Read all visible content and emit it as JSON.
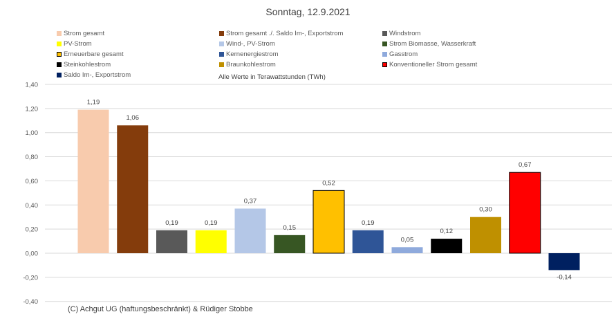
{
  "chart_data": {
    "type": "bar",
    "title": "Sonntag, 12.9.2021",
    "note": "Alle Werte in Terawattstunden (TWh)",
    "copyright": "(C) Achgut UG (haftungsbeschränkt) & Rüdiger Stobbe",
    "ylim": [
      -0.4,
      1.4
    ],
    "yticks": [
      "1,40",
      "1,20",
      "1,00",
      "0,80",
      "0,60",
      "0,40",
      "0,20",
      "0,00",
      "-0,20",
      "-0,40"
    ],
    "ytick_values": [
      1.4,
      1.2,
      1.0,
      0.8,
      0.6,
      0.4,
      0.2,
      0,
      -0.2,
      -0.4
    ],
    "grid": true,
    "legend_position": "top",
    "categories": [
      "Strom gesamt",
      "Strom gesamt ./. Saldo Im-, Exportstrom",
      "Windstrom",
      "PV-Strom",
      "Wind-, PV-Strom",
      "Strom Biomasse, Wasserkraft",
      "Erneuerbare gesamt",
      "Kernenergiestrom",
      "Gasstrom",
      "Steinkohlestrom",
      "Braunkohlestrom",
      "Konventioneller Strom gesamt",
      "Saldo Im-, Exportstrom"
    ],
    "values": [
      1.19,
      1.06,
      0.19,
      0.19,
      0.37,
      0.15,
      0.52,
      0.19,
      0.05,
      0.12,
      0.3,
      0.67,
      -0.14
    ],
    "labels": [
      "1,19",
      "1,06",
      "0,19",
      "0,19",
      "0,37",
      "0,15",
      "0,52",
      "0,19",
      "0,05",
      "0,12",
      "0,30",
      "0,67",
      "-0,14"
    ],
    "colors": [
      "#f8cbad",
      "#843c0c",
      "#595959",
      "#ffff00",
      "#b4c7e7",
      "#375623",
      "#ffc000",
      "#2f5597",
      "#8faadc",
      "#000000",
      "#bf9000",
      "#ff0000",
      "#002060"
    ],
    "outlined": [
      false,
      false,
      false,
      false,
      false,
      false,
      true,
      false,
      false,
      false,
      false,
      true,
      false
    ]
  }
}
